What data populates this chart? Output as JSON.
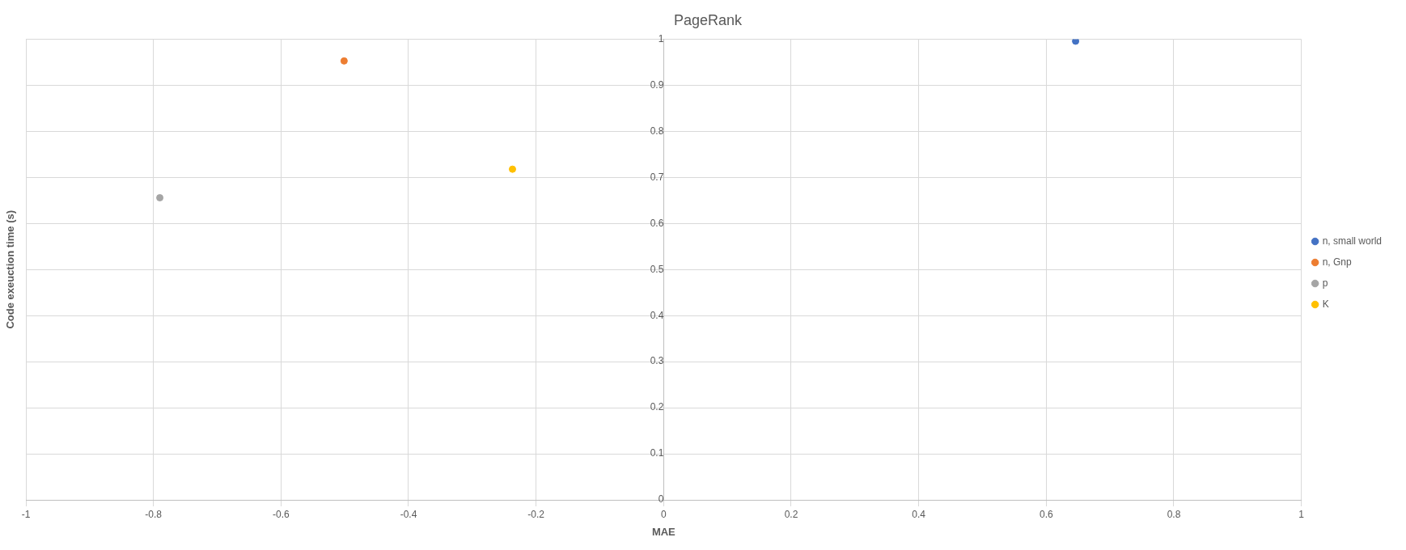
{
  "chart_data": {
    "type": "scatter",
    "title": "PageRank",
    "xlabel": "MAE",
    "ylabel": "Code exeuction time (s)",
    "xlim": [
      -1,
      1
    ],
    "xticks": [
      -1,
      -0.8,
      -0.6,
      -0.4,
      -0.2,
      0,
      0.2,
      0.4,
      0.6,
      0.8,
      1
    ],
    "ylim": [
      0,
      1
    ],
    "yticks": [
      0,
      0.1,
      0.2,
      0.3,
      0.4,
      0.5,
      0.6,
      0.7,
      0.8,
      0.9,
      1
    ],
    "grid": true,
    "legend": "right",
    "marker": "circle",
    "series": [
      {
        "name": "n, small world",
        "color": "#4472c4",
        "x": [
          0.646
        ],
        "values": [
          0.996
        ]
      },
      {
        "name": "n, Gnp",
        "color": "#ed7d31",
        "x": [
          -0.501
        ],
        "values": [
          0.953
        ]
      },
      {
        "name": "p",
        "color": "#a5a5a5",
        "x": [
          -0.79
        ],
        "values": [
          0.656
        ]
      },
      {
        "name": "K",
        "color": "#ffc000",
        "x": [
          -0.237
        ],
        "values": [
          0.718
        ]
      }
    ]
  }
}
